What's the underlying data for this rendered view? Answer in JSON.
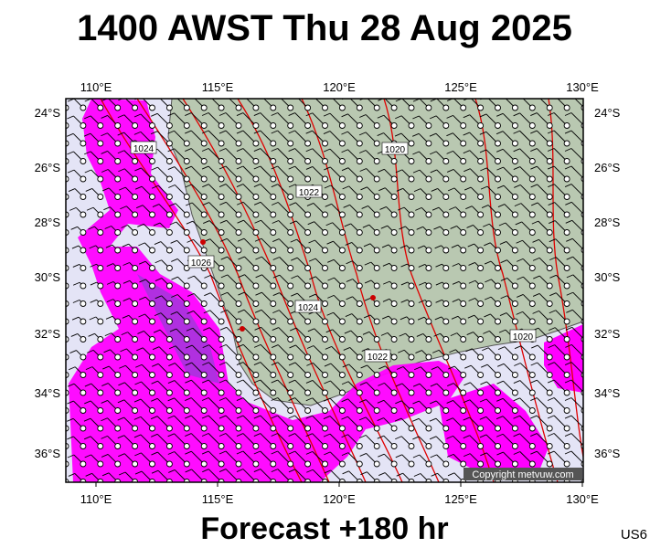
{
  "title": "1400 AWST Thu 28 Aug 2025",
  "footer": "Forecast +180 hr",
  "code": "US6",
  "copyright": "Copyright metvuw.com",
  "longitude_labels": [
    "110°E",
    "115°E",
    "120°E",
    "125°E",
    "130°E"
  ],
  "latitude_labels": [
    "24°S",
    "26°S",
    "28°S",
    "30°S",
    "32°S",
    "34°S",
    "36°S"
  ],
  "isobar_labels": [
    "1024",
    "1020",
    "1022",
    "1026",
    "1024",
    "1022",
    "1020"
  ]
}
